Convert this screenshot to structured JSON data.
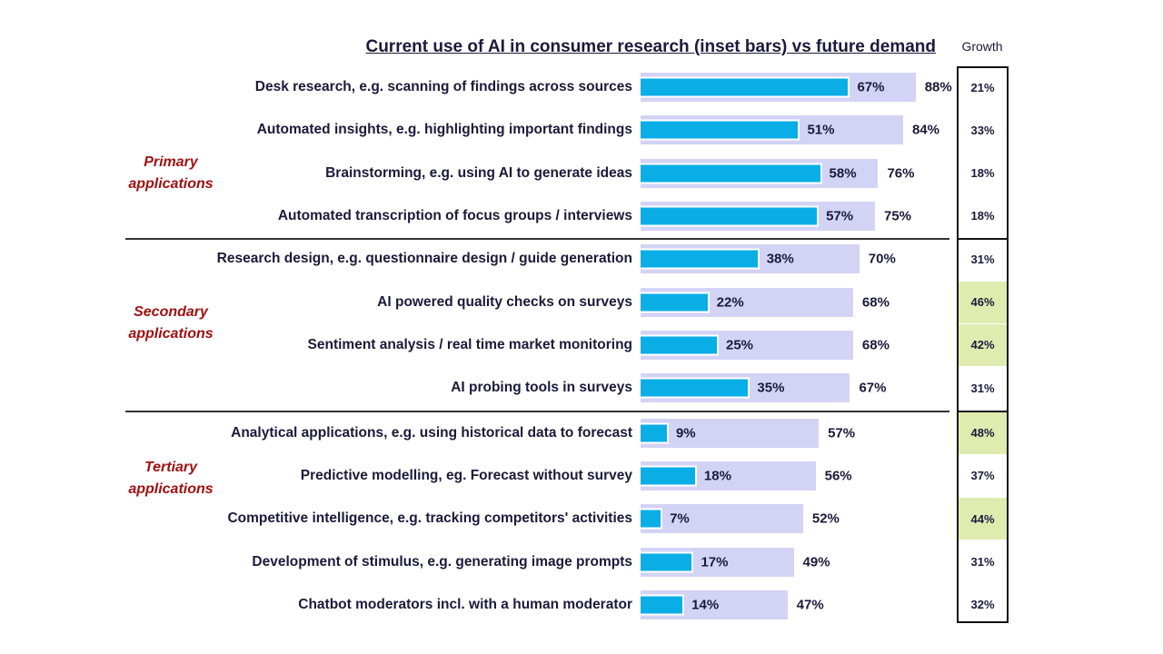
{
  "chart_data": {
    "type": "bar",
    "title": "Current use of AI in consumer research (inset bars) vs future demand",
    "growth_header": "Growth",
    "categories": [
      "Desk research, e.g. scanning of findings across sources",
      "Automated insights, e.g. highlighting important findings",
      "Brainstorming, e.g. using AI to generate ideas",
      "Automated transcription of focus groups / interviews",
      "Research design, e.g. questionnaire design / guide generation",
      "AI powered quality checks on surveys",
      "Sentiment analysis / real time market monitoring",
      "AI probing tools in surveys",
      "Analytical applications,  e.g. using historical data to forecast",
      "Predictive modelling, eg. Forecast without survey",
      "Competitive intelligence, e.g. tracking competitors' activities",
      "Development of stimulus, e.g. generating image prompts",
      "Chatbot moderators incl. with a human moderator"
    ],
    "series": [
      {
        "values": [
          67,
          51,
          58,
          57,
          38,
          22,
          25,
          35,
          9,
          18,
          7,
          17,
          14
        ]
      },
      {
        "values": [
          88,
          84,
          76,
          75,
          70,
          68,
          68,
          67,
          57,
          56,
          52,
          49,
          47
        ]
      }
    ],
    "growth": [
      21,
      33,
      18,
      18,
      31,
      46,
      42,
      31,
      48,
      37,
      44,
      31,
      32
    ],
    "growth_highlighted": [
      false,
      false,
      false,
      false,
      false,
      true,
      true,
      false,
      true,
      false,
      true,
      false,
      false
    ],
    "groups": [
      {
        "label": "Primary applications",
        "rows": [
          0,
          3
        ]
      },
      {
        "label": "Secondary applications",
        "rows": [
          4,
          7
        ]
      },
      {
        "label": "Tertiary applications",
        "rows": [
          8,
          12
        ]
      }
    ],
    "value_suffix": "%",
    "xlim": [
      0,
      100
    ],
    "colors": {
      "current": "#0aaee6",
      "future": "#d3d3f6",
      "highlight": "#e0ebb0",
      "group_label": "#a01010"
    }
  }
}
